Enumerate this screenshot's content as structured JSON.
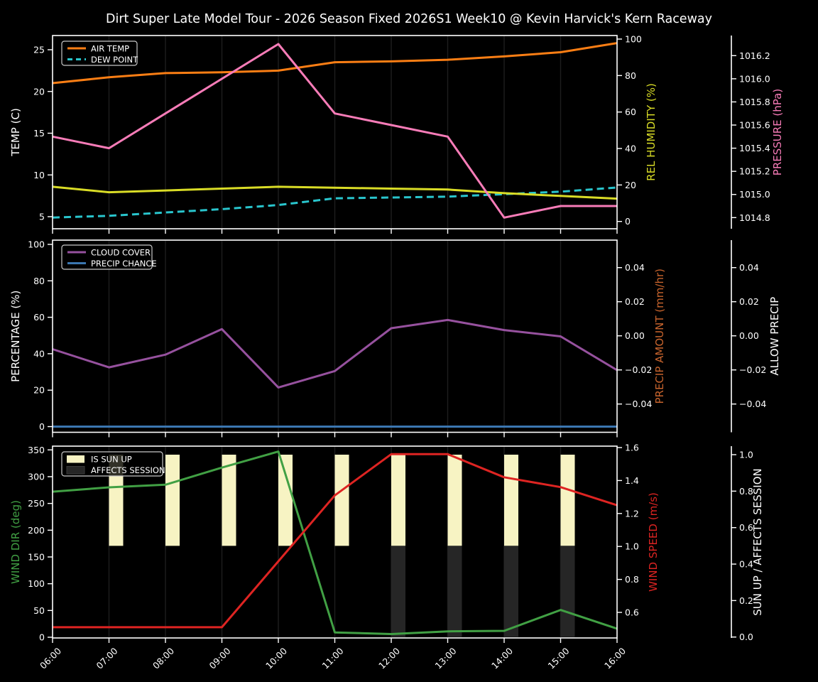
{
  "title": "Dirt Super Late Model Tour - 2026 Season Fixed 2026S1 Week10 @ Kevin Harvick's Kern Raceway",
  "figure": {
    "background": "#000000",
    "foreground": "#ffffff",
    "grid_color": "#1e1e1e"
  },
  "x_axis": {
    "hours": [
      6,
      7,
      8,
      9,
      10,
      11,
      12,
      13,
      14,
      15,
      16
    ],
    "tick_labels": [
      "06:00",
      "07:00",
      "08:00",
      "09:00",
      "10:00",
      "11:00",
      "12:00",
      "13:00",
      "14:00",
      "15:00",
      "16:00"
    ]
  },
  "chart_data": [
    {
      "type": "line",
      "name": "temperature-humidity-pressure",
      "axes": {
        "left": {
          "id": "temp",
          "label": "TEMP (C)",
          "color": "#ffffff",
          "tick_labels": [
            "5",
            "10",
            "15",
            "20",
            "25"
          ],
          "ticks": [
            5,
            10,
            15,
            20,
            25
          ]
        },
        "right1": {
          "id": "hum",
          "label": "REL HUMIDITY (%)",
          "color": "#d9dc26",
          "tick_labels": [
            "0",
            "20",
            "40",
            "60",
            "80",
            "100"
          ],
          "ticks": [
            0,
            20,
            40,
            60,
            80,
            100
          ]
        },
        "right2": {
          "id": "pres",
          "label": "PRESSURE (hPa)",
          "color": "#f87cb8",
          "tick_labels": [
            "1014.8",
            "1015.0",
            "1015.2",
            "1015.4",
            "1015.6",
            "1015.8",
            "1016.0",
            "1016.2"
          ],
          "ticks": [
            1014.8,
            1015.0,
            1015.2,
            1015.4,
            1015.6,
            1015.8,
            1016.0,
            1016.2
          ]
        }
      },
      "legend": [
        {
          "label": "AIR TEMP",
          "swatch": "line",
          "color": "#fb7e14"
        },
        {
          "label": "DEW POINT",
          "swatch": "dashed-line",
          "color": "#29c5cd"
        }
      ],
      "series": [
        {
          "name": "AIR TEMP",
          "slug": "air-temp",
          "axis": "temp",
          "color": "#fb7e14",
          "dash": false,
          "values": [
            21.0,
            21.7,
            22.2,
            22.3,
            22.5,
            23.5,
            23.6,
            23.8,
            24.2,
            24.7,
            25.8
          ]
        },
        {
          "name": "DEW POINT",
          "slug": "dew-point",
          "axis": "temp",
          "color": "#29c5cd",
          "dash": true,
          "values": [
            4.9,
            5.1,
            5.5,
            5.9,
            6.4,
            7.2,
            7.3,
            7.4,
            7.7,
            8.0,
            8.5
          ]
        },
        {
          "name": "REL HUMIDITY",
          "slug": "rel-humidity",
          "axis": "hum",
          "color": "#d9dc26",
          "dash": false,
          "values": [
            19,
            16,
            17,
            18,
            19,
            18.5,
            18,
            17.5,
            15.5,
            14,
            12.5
          ]
        },
        {
          "name": "PRESSURE",
          "slug": "pressure",
          "axis": "pres",
          "color": "#f87cb8",
          "dash": false,
          "values": [
            1015.5,
            1015.4,
            1015.7,
            1016.0,
            1016.3,
            1015.7,
            1015.6,
            1015.5,
            1014.8,
            1014.9,
            1014.9
          ]
        }
      ]
    },
    {
      "type": "line",
      "name": "cloud-precip",
      "axes": {
        "left": {
          "id": "pct",
          "label": "PERCENTAGE (%)",
          "color": "#ffffff",
          "tick_labels": [
            "0",
            "20",
            "40",
            "60",
            "80",
            "100"
          ],
          "ticks": [
            0,
            20,
            40,
            60,
            80,
            100
          ]
        },
        "right1": {
          "id": "pam",
          "label": "PRECIP AMOUNT (mm/hr)",
          "color": "#c8642d",
          "tick_labels": [
            "0.04",
            "0.02",
            "0.00",
            "−0.02",
            "−0.04"
          ],
          "ticks": [
            0.04,
            0.02,
            0.0,
            -0.02,
            -0.04
          ]
        },
        "right2": {
          "id": "allow",
          "label": "ALLOW PRECIP",
          "color": "#ffffff",
          "tick_labels": [
            "0.04",
            "0.02",
            "0.00",
            "−0.02",
            "−0.04"
          ],
          "ticks": [
            0.04,
            0.02,
            0.0,
            -0.02,
            -0.04
          ]
        }
      },
      "legend": [
        {
          "label": "CLOUD COVER",
          "swatch": "line",
          "color": "#96519e"
        },
        {
          "label": "PRECIP CHANCE",
          "swatch": "line",
          "color": "#3b76b0"
        }
      ],
      "series": [
        {
          "name": "CLOUD COVER",
          "slug": "cloud-cover",
          "axis": "pct",
          "color": "#96519e",
          "dash": false,
          "values": [
            42.5,
            32.5,
            39.5,
            53.5,
            21.5,
            30.5,
            54,
            58.5,
            53,
            49.5,
            31
          ]
        },
        {
          "name": "PRECIP CHANCE",
          "slug": "precip-chance",
          "axis": "pct",
          "color": "#3b76b0",
          "dash": false,
          "values": [
            0,
            0,
            0,
            0,
            0,
            0,
            0,
            0,
            0,
            0,
            0
          ]
        },
        {
          "name": "PRECIP AMOUNT",
          "slug": "precip-amount",
          "axis": "pam",
          "color": "#c8642d",
          "dash": false,
          "hidden": true,
          "values": [
            0,
            0,
            0,
            0,
            0,
            0,
            0,
            0,
            0,
            0,
            0
          ]
        },
        {
          "name": "ALLOW PRECIP",
          "slug": "allow-precip",
          "axis": "allow",
          "color": "#ffffff",
          "dash": false,
          "hidden": true,
          "values": [
            0,
            0,
            0,
            0,
            0,
            0,
            0,
            0,
            0,
            0,
            0
          ]
        }
      ]
    },
    {
      "type": "line-bar",
      "name": "wind-sun",
      "axes": {
        "left": {
          "id": "dir",
          "label": "WIND DIR (deg)",
          "color": "#41a044",
          "tick_labels": [
            "0",
            "50",
            "100",
            "150",
            "200",
            "250",
            "300",
            "350"
          ],
          "ticks": [
            0,
            50,
            100,
            150,
            200,
            250,
            300,
            350
          ]
        },
        "right1": {
          "id": "spd",
          "label": "WIND SPEED (m/s)",
          "color": "#de2422",
          "tick_labels": [
            "0.6",
            "0.8",
            "1.0",
            "1.2",
            "1.4",
            "1.6"
          ],
          "ticks": [
            0.6,
            0.8,
            1.0,
            1.2,
            1.4,
            1.6
          ]
        },
        "right2": {
          "id": "sun",
          "label": "SUN UP / AFFECTS SESSION",
          "color": "#ffffff",
          "tick_labels": [
            "0.0",
            "0.2",
            "0.4",
            "0.6",
            "0.8",
            "1.0"
          ],
          "ticks": [
            0.0,
            0.2,
            0.4,
            0.6,
            0.8,
            1.0
          ]
        }
      },
      "legend": [
        {
          "label": "IS SUN UP",
          "swatch": "patch",
          "color": "#f7f3c3"
        },
        {
          "label": "AFFECTS SESSION",
          "swatch": "patch",
          "color": "#262626"
        }
      ],
      "bars": [
        {
          "name": "IS SUN UP",
          "slug": "is-sun-up",
          "axis": "sun",
          "color": "#f7f3c3",
          "bottom": 0.5,
          "top": 1.0,
          "values": [
            0,
            1,
            1,
            1,
            1,
            1,
            1,
            1,
            1,
            1,
            0
          ]
        },
        {
          "name": "AFFECTS SESSION",
          "slug": "affects-session",
          "axis": "sun",
          "color": "#262626",
          "bottom": 0.0,
          "top": 0.5,
          "values": [
            0,
            0,
            0,
            0,
            0,
            0,
            1,
            1,
            1,
            1,
            0
          ]
        }
      ],
      "series": [
        {
          "name": "WIND DIR",
          "slug": "wind-dir",
          "axis": "dir",
          "color": "#41a044",
          "dash": false,
          "values": [
            272,
            280,
            285,
            317,
            347,
            9,
            6,
            11,
            12,
            51,
            16
          ]
        },
        {
          "name": "WIND SPEED",
          "slug": "wind-speed",
          "axis": "spd",
          "color": "#de2422",
          "dash": false,
          "values": [
            0.51,
            0.51,
            0.51,
            0.51,
            0.91,
            1.31,
            1.56,
            1.56,
            1.42,
            1.36,
            1.25
          ]
        }
      ]
    }
  ]
}
